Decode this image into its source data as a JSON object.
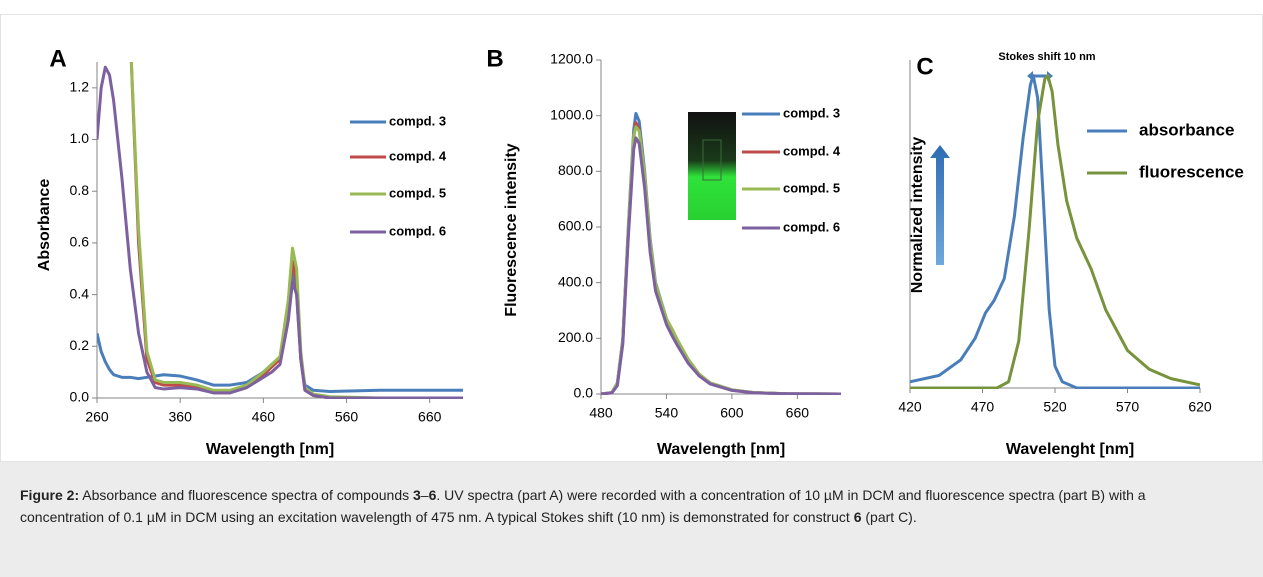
{
  "chart_data": [
    {
      "type": "line",
      "title": "A",
      "x_label": "Wavelength [nm]",
      "y_label": "Absorbance",
      "xlim": [
        260,
        700
      ],
      "xticks": [
        260,
        360,
        460,
        560,
        660
      ],
      "ylim": [
        0,
        1.3
      ],
      "yticks": [
        {
          "value": 0,
          "label": "0.0"
        },
        0.2,
        0.4,
        0.6,
        0.8,
        {
          "value": 1,
          "label": "1.0"
        },
        1.2
      ],
      "x": [
        260,
        265,
        270,
        275,
        280,
        290,
        300,
        310,
        320,
        330,
        340,
        360,
        380,
        400,
        420,
        440,
        460,
        470,
        480,
        490,
        495,
        500,
        505,
        510,
        520,
        540,
        600,
        700
      ],
      "series": [
        {
          "name": "compd. 3",
          "color": "#4a7ebb",
          "values": [
            0.25,
            0.18,
            0.14,
            0.11,
            0.09,
            0.08,
            0.08,
            0.075,
            0.08,
            0.085,
            0.09,
            0.085,
            0.07,
            0.05,
            0.05,
            0.06,
            0.1,
            0.13,
            0.15,
            0.35,
            0.5,
            0.4,
            0.15,
            0.05,
            0.03,
            0.025,
            0.03,
            0.03
          ]
        },
        {
          "name": "compd. 4",
          "color": "#be4b48",
          "values": [
            null,
            null,
            null,
            null,
            null,
            null,
            1.4,
            0.6,
            0.15,
            0.06,
            0.05,
            0.05,
            0.04,
            0.02,
            0.02,
            0.05,
            0.09,
            0.12,
            0.15,
            0.35,
            0.53,
            0.45,
            0.15,
            0.03,
            0.01,
            0,
            0,
            0
          ]
        },
        {
          "name": "compd. 5",
          "color": "#98b954",
          "values": [
            null,
            null,
            null,
            null,
            null,
            null,
            1.4,
            0.65,
            0.18,
            0.07,
            0.06,
            0.06,
            0.05,
            0.03,
            0.03,
            0.05,
            0.1,
            0.13,
            0.16,
            0.38,
            0.58,
            0.5,
            0.18,
            0.04,
            0.015,
            0.005,
            0,
            0
          ]
        },
        {
          "name": "compd. 6",
          "color": "#7d60a0",
          "values": [
            1.0,
            1.2,
            1.28,
            1.25,
            1.15,
            0.85,
            0.5,
            0.25,
            0.1,
            0.04,
            0.035,
            0.04,
            0.035,
            0.02,
            0.02,
            0.04,
            0.08,
            0.1,
            0.13,
            0.3,
            0.45,
            0.4,
            0.15,
            0.03,
            0.01,
            0,
            0,
            0
          ]
        }
      ]
    },
    {
      "type": "line",
      "title": "B",
      "x_label": "Wavelength [nm]",
      "y_label": "Fluorescence intensity",
      "xlim": [
        480,
        700
      ],
      "xticks": [
        480,
        540,
        600,
        660
      ],
      "ylim": [
        0,
        1200
      ],
      "yticks": [
        {
          "value": 0,
          "label": "0.0"
        },
        {
          "value": 200,
          "label": "200.0"
        },
        {
          "value": 400,
          "label": "400.0"
        },
        {
          "value": 600,
          "label": "600.0"
        },
        {
          "value": 800,
          "label": "800.0"
        },
        {
          "value": 1000,
          "label": "1000.0"
        },
        {
          "value": 1200,
          "label": "1200.0"
        }
      ],
      "x": [
        480,
        490,
        495,
        500,
        505,
        510,
        512,
        515,
        520,
        525,
        530,
        540,
        545,
        550,
        560,
        570,
        580,
        600,
        620,
        650,
        700
      ],
      "series": [
        {
          "name": "compd. 3",
          "color": "#4a7ebb",
          "values": [
            0,
            5,
            40,
            200,
            600,
            950,
            1008,
            980,
            800,
            560,
            400,
            270,
            230,
            190,
            120,
            70,
            40,
            15,
            5,
            1,
            0
          ]
        },
        {
          "name": "compd. 4",
          "color": "#be4b48",
          "values": [
            0,
            5,
            35,
            190,
            580,
            920,
            975,
            950,
            780,
            540,
            390,
            265,
            225,
            185,
            118,
            68,
            38,
            14,
            5,
            1,
            0
          ]
        },
        {
          "name": "compd. 5",
          "color": "#98b954",
          "values": [
            0,
            5,
            38,
            195,
            590,
            930,
            960,
            945,
            790,
            550,
            395,
            270,
            235,
            195,
            125,
            72,
            40,
            15,
            5,
            1,
            0
          ]
        },
        {
          "name": "compd. 6",
          "color": "#7d60a0",
          "values": [
            0,
            4,
            30,
            180,
            560,
            880,
            920,
            900,
            740,
            510,
            370,
            250,
            210,
            175,
            110,
            65,
            36,
            13,
            4,
            1,
            0
          ]
        }
      ]
    },
    {
      "type": "line",
      "title": "C",
      "annotation": "Stokes shift 10 nm",
      "x_label": "Wavelenght [nm]",
      "y_label": "Normalized intensity",
      "xlim": [
        420,
        620
      ],
      "xticks": [
        420,
        470,
        520,
        570,
        620
      ],
      "ylim": [
        0,
        1.05
      ],
      "series": [
        {
          "name": "absorbance",
          "color": "#4a7ebb",
          "x": [
            420,
            440,
            455,
            465,
            472,
            478,
            485,
            492,
            498,
            503,
            505,
            508,
            512,
            516,
            520,
            525,
            535,
            620
          ],
          "values": [
            0.02,
            0.04,
            0.09,
            0.16,
            0.24,
            0.28,
            0.35,
            0.55,
            0.8,
            0.97,
            1.0,
            0.93,
            0.6,
            0.25,
            0.07,
            0.02,
            0,
            0
          ]
        },
        {
          "name": "fluorescence",
          "color": "#77933c",
          "x": [
            420,
            480,
            488,
            495,
            502,
            508,
            513,
            515,
            518,
            522,
            528,
            535,
            545,
            555,
            570,
            585,
            600,
            620
          ],
          "values": [
            0,
            0,
            0.02,
            0.15,
            0.5,
            0.85,
            0.99,
            1.0,
            0.95,
            0.78,
            0.6,
            0.48,
            0.38,
            0.25,
            0.12,
            0.06,
            0.03,
            0.01
          ]
        }
      ]
    }
  ],
  "caption": [
    {
      "text": "Figure 2:",
      "bold": true
    },
    {
      "text": " Absorbance and fluorescence spectra of compounds ",
      "bold": false
    },
    {
      "text": "3",
      "bold": true
    },
    {
      "text": "–",
      "bold": false
    },
    {
      "text": "6",
      "bold": true
    },
    {
      "text": ". UV spectra (part A) were recorded with a concentration of 10 µM in DCM and fluorescence spectra (part B) with a concentration of 0.1 µM in DCM using an excitation wavelength of 475 nm. A typical Stokes shift (10 nm) is demonstrated for construct ",
      "bold": false
    },
    {
      "text": "6",
      "bold": true
    },
    {
      "text": " (part C).",
      "bold": false
    }
  ]
}
